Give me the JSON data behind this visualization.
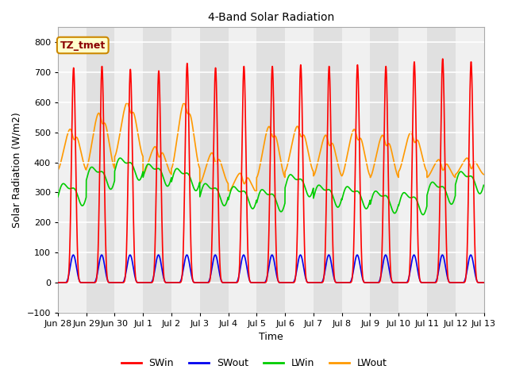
{
  "title": "4-Band Solar Radiation",
  "xlabel": "Time",
  "ylabel": "Solar Radiation (W/m2)",
  "ylim": [
    -100,
    850
  ],
  "yticks": [
    -100,
    0,
    100,
    200,
    300,
    400,
    500,
    600,
    700,
    800
  ],
  "colors": {
    "SWin": "#ff0000",
    "SWout": "#0000ee",
    "LWin": "#00cc00",
    "LWout": "#ff9900"
  },
  "legend_label": "TZ_tmet",
  "background_dark": "#e0e0e0",
  "background_light": "#f0f0f0",
  "n_days": 15,
  "xtick_labels": [
    "Jun 28",
    "Jun 29",
    "Jun 30",
    "Jul 1",
    "Jul 2",
    "Jul 3",
    "Jul 4",
    "Jul 5",
    "Jul 6",
    "Jul 7",
    "Jul 8",
    "Jul 9",
    "Jul 10",
    "Jul 11",
    "Jul 12",
    "Jul 13"
  ],
  "grid_color": "#ffffff",
  "title_fontsize": 10,
  "axis_fontsize": 9,
  "tick_fontsize": 8
}
